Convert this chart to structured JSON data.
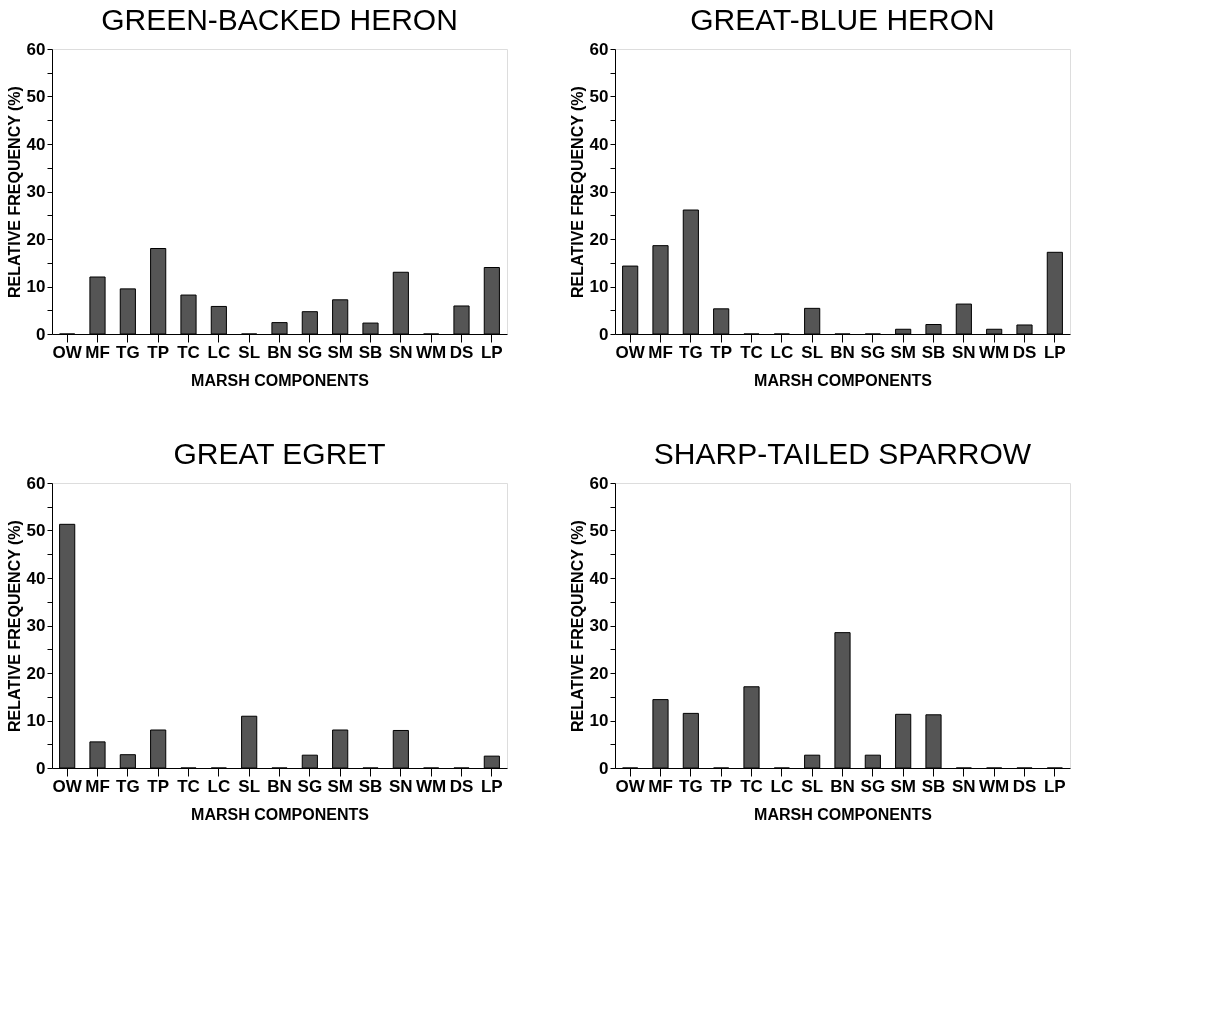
{
  "chart_data": [
    {
      "type": "bar",
      "title": "GREEN-BACKED HERON",
      "xlabel": "MARSH COMPONENTS",
      "ylabel": "RELATIVE FREQUENCY (%)",
      "categories": [
        "OW",
        "MF",
        "TG",
        "TP",
        "TC",
        "LC",
        "SL",
        "BN",
        "SG",
        "SM",
        "SB",
        "SN",
        "WM",
        "DS",
        "LP"
      ],
      "values": [
        0,
        12,
        9.5,
        18,
        8.2,
        5.8,
        0,
        2.4,
        4.7,
        7.2,
        2.3,
        13,
        0,
        5.9,
        14
      ],
      "color": "#555555",
      "ylim": [
        0,
        60
      ],
      "yticks": [
        0,
        {
          "value": 5,
          "label": null
        },
        10,
        {
          "value": 15,
          "label": null
        },
        20,
        {
          "value": 25,
          "label": null
        },
        30,
        {
          "value": 35,
          "label": null
        },
        40,
        {
          "value": 45,
          "label": null
        },
        50,
        {
          "value": 55,
          "label": null
        },
        60
      ],
      "grid": false
    },
    {
      "type": "bar",
      "title": "GREAT-BLUE HERON",
      "xlabel": "MARSH COMPONENTS",
      "ylabel": "RELATIVE FREQUENCY (%)",
      "categories": [
        "OW",
        "MF",
        "TG",
        "TP",
        "TC",
        "LC",
        "SL",
        "BN",
        "SG",
        "SM",
        "SB",
        "SN",
        "WM",
        "DS",
        "LP"
      ],
      "values": [
        14.3,
        18.6,
        26.1,
        5.3,
        0,
        0,
        5.4,
        0,
        0,
        1,
        2,
        6.3,
        1,
        1.9,
        17.2
      ],
      "color": "#555555",
      "ylim": [
        0,
        60
      ],
      "yticks": [
        0,
        {
          "value": 5,
          "label": null
        },
        10,
        {
          "value": 15,
          "label": null
        },
        20,
        {
          "value": 25,
          "label": null
        },
        30,
        {
          "value": 35,
          "label": null
        },
        40,
        {
          "value": 45,
          "label": null
        },
        50,
        {
          "value": 55,
          "label": null
        },
        60
      ],
      "grid": false
    },
    {
      "type": "bar",
      "title": "GREAT  EGRET",
      "xlabel": "MARSH COMPONENTS",
      "ylabel": "RELATIVE FREQUENCY (%)",
      "categories": [
        "OW",
        "MF",
        "TG",
        "TP",
        "TC",
        "LC",
        "SL",
        "BN",
        "SG",
        "SM",
        "SB",
        "SN",
        "WM",
        "DS",
        "LP"
      ],
      "values": [
        51.3,
        5.5,
        2.8,
        8,
        0,
        0,
        10.9,
        0,
        2.7,
        8,
        0,
        7.9,
        0,
        0,
        2.5
      ],
      "color": "#555555",
      "ylim": [
        0,
        60
      ],
      "yticks": [
        0,
        {
          "value": 5,
          "label": null
        },
        10,
        {
          "value": 15,
          "label": null
        },
        20,
        {
          "value": 25,
          "label": null
        },
        30,
        {
          "value": 35,
          "label": null
        },
        40,
        {
          "value": 45,
          "label": null
        },
        50,
        {
          "value": 55,
          "label": null
        },
        60
      ],
      "grid": false
    },
    {
      "type": "bar",
      "title": "SHARP-TAILED SPARROW",
      "xlabel": "MARSH COMPONENTS",
      "ylabel": "RELATIVE FREQUENCY (%)",
      "categories": [
        "OW",
        "MF",
        "TG",
        "TP",
        "TC",
        "LC",
        "SL",
        "BN",
        "SG",
        "SM",
        "SB",
        "SN",
        "WM",
        "DS",
        "LP"
      ],
      "values": [
        0,
        14.4,
        11.5,
        0,
        17.1,
        0,
        2.7,
        28.5,
        2.7,
        11.3,
        11.2,
        0,
        0,
        0,
        0
      ],
      "color": "#555555",
      "ylim": [
        0,
        60
      ],
      "yticks": [
        0,
        {
          "value": 5,
          "label": null
        },
        10,
        {
          "value": 15,
          "label": null
        },
        20,
        {
          "value": 25,
          "label": null
        },
        30,
        {
          "value": 35,
          "label": null
        },
        40,
        {
          "value": 45,
          "label": null
        },
        50,
        {
          "value": 55,
          "label": null
        },
        60
      ],
      "grid": false
    }
  ]
}
